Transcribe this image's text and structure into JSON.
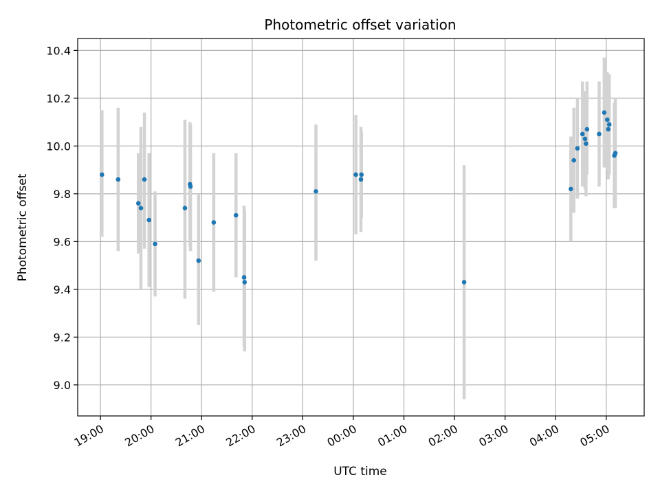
{
  "chart_data": {
    "type": "scatter",
    "title": "Photometric offset variation",
    "xlabel": "UTC time",
    "ylabel": "Photometric offset",
    "x_unit": "UTC hours since 19:00",
    "xlim": [
      -0.45,
      10.75
    ],
    "ylim": [
      8.87,
      10.45
    ],
    "grid": true,
    "point_color": "#1f77b4",
    "errorbar_color": "#d3d3d3",
    "x_ticks": [
      {
        "value": 0,
        "label": "19:00"
      },
      {
        "value": 1,
        "label": "20:00"
      },
      {
        "value": 2,
        "label": "21:00"
      },
      {
        "value": 3,
        "label": "22:00"
      },
      {
        "value": 4,
        "label": "23:00"
      },
      {
        "value": 5,
        "label": "00:00"
      },
      {
        "value": 6,
        "label": "01:00"
      },
      {
        "value": 7,
        "label": "02:00"
      },
      {
        "value": 8,
        "label": "03:00"
      },
      {
        "value": 9,
        "label": "04:00"
      },
      {
        "value": 10,
        "label": "05:00"
      }
    ],
    "y_ticks": [
      {
        "value": 9.0,
        "label": "9.0"
      },
      {
        "value": 9.2,
        "label": "9.2"
      },
      {
        "value": 9.4,
        "label": "9.4"
      },
      {
        "value": 9.6,
        "label": "9.6"
      },
      {
        "value": 9.8,
        "label": "9.8"
      },
      {
        "value": 10.0,
        "label": "10.0"
      },
      {
        "value": 10.2,
        "label": "10.2"
      },
      {
        "value": 10.4,
        "label": "10.4"
      }
    ],
    "points": [
      {
        "x": 0.03,
        "y": 9.88,
        "low": 9.62,
        "high": 10.15
      },
      {
        "x": 0.35,
        "y": 9.86,
        "low": 9.56,
        "high": 10.16
      },
      {
        "x": 0.75,
        "y": 9.76,
        "low": 9.55,
        "high": 9.97
      },
      {
        "x": 0.8,
        "y": 9.74,
        "low": 9.4,
        "high": 10.08
      },
      {
        "x": 0.87,
        "y": 9.86,
        "low": 9.57,
        "high": 10.14
      },
      {
        "x": 0.96,
        "y": 9.69,
        "low": 9.41,
        "high": 9.97
      },
      {
        "x": 1.08,
        "y": 9.59,
        "low": 9.37,
        "high": 9.81
      },
      {
        "x": 1.67,
        "y": 9.74,
        "low": 9.36,
        "high": 10.11
      },
      {
        "x": 1.77,
        "y": 9.84,
        "low": 9.58,
        "high": 10.1
      },
      {
        "x": 1.78,
        "y": 9.83,
        "low": 9.56,
        "high": 10.09
      },
      {
        "x": 1.94,
        "y": 9.52,
        "low": 9.25,
        "high": 9.8
      },
      {
        "x": 2.24,
        "y": 9.68,
        "low": 9.39,
        "high": 9.97
      },
      {
        "x": 2.68,
        "y": 9.71,
        "low": 9.45,
        "high": 9.97
      },
      {
        "x": 2.84,
        "y": 9.45,
        "low": 9.16,
        "high": 9.75
      },
      {
        "x": 2.85,
        "y": 9.43,
        "low": 9.14,
        "high": 9.73
      },
      {
        "x": 4.26,
        "y": 9.81,
        "low": 9.52,
        "high": 10.09
      },
      {
        "x": 5.05,
        "y": 9.88,
        "low": 9.63,
        "high": 10.13
      },
      {
        "x": 5.15,
        "y": 9.86,
        "low": 9.64,
        "high": 10.08
      },
      {
        "x": 5.16,
        "y": 9.88,
        "low": 9.7,
        "high": 10.06
      },
      {
        "x": 7.19,
        "y": 9.43,
        "low": 8.94,
        "high": 9.92
      },
      {
        "x": 9.3,
        "y": 9.82,
        "low": 9.6,
        "high": 10.04
      },
      {
        "x": 9.36,
        "y": 9.94,
        "low": 9.72,
        "high": 10.16
      },
      {
        "x": 9.43,
        "y": 9.99,
        "low": 9.78,
        "high": 10.2
      },
      {
        "x": 9.53,
        "y": 10.05,
        "low": 9.83,
        "high": 10.27
      },
      {
        "x": 9.58,
        "y": 10.03,
        "low": 9.82,
        "high": 10.23
      },
      {
        "x": 9.6,
        "y": 10.01,
        "low": 9.79,
        "high": 10.23
      },
      {
        "x": 9.62,
        "y": 10.07,
        "low": 9.88,
        "high": 10.27
      },
      {
        "x": 9.86,
        "y": 10.05,
        "low": 9.83,
        "high": 10.27
      },
      {
        "x": 9.96,
        "y": 10.14,
        "low": 9.91,
        "high": 10.37
      },
      {
        "x": 10.02,
        "y": 10.11,
        "low": 9.9,
        "high": 10.31
      },
      {
        "x": 10.04,
        "y": 10.07,
        "low": 9.86,
        "high": 10.28
      },
      {
        "x": 10.06,
        "y": 10.09,
        "low": 9.88,
        "high": 10.3
      },
      {
        "x": 10.16,
        "y": 9.96,
        "low": 9.74,
        "high": 10.18
      },
      {
        "x": 10.18,
        "y": 9.97,
        "low": 9.74,
        "high": 10.2
      }
    ]
  }
}
